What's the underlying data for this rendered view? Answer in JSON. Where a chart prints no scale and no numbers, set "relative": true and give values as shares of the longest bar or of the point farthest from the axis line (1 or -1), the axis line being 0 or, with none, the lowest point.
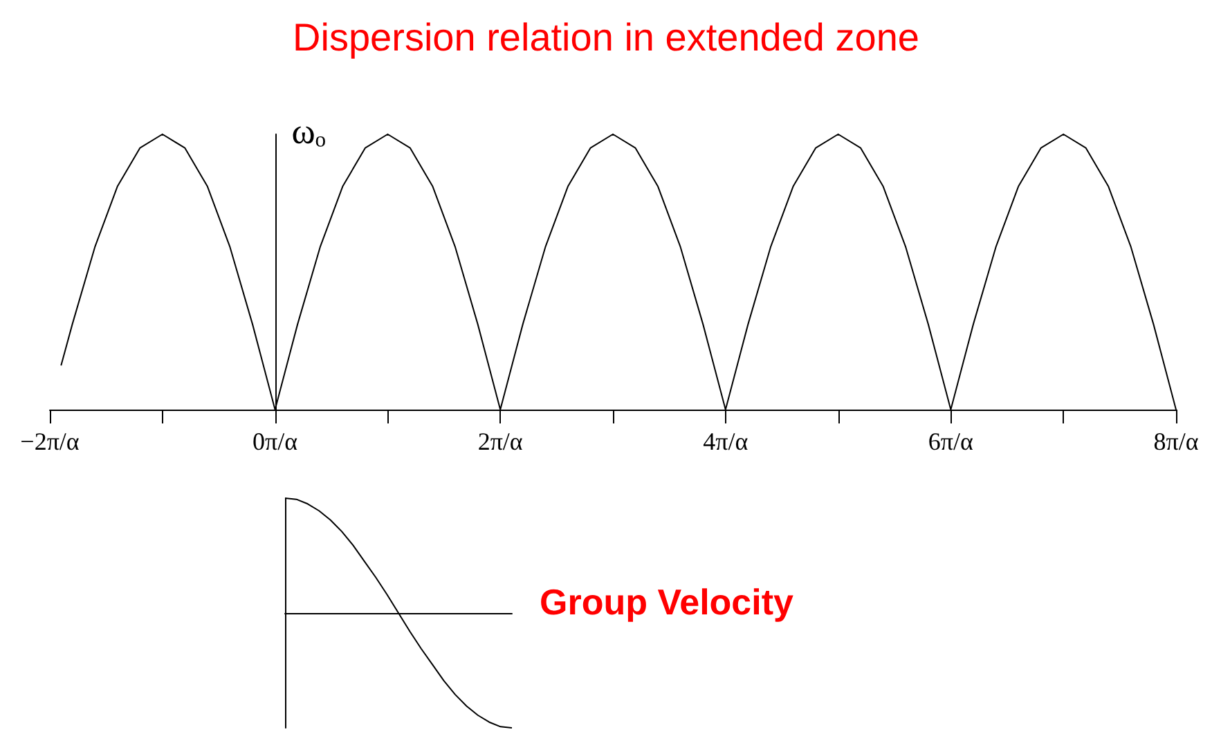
{
  "chart_data": [
    {
      "type": "line",
      "title": "Dispersion relation in extended zone",
      "ylabel": "ωₒ",
      "relative": true,
      "color": "#000000",
      "marker": "none",
      "x": [
        -1.9,
        -1.8,
        -1.6,
        -1.4,
        -1.2,
        -1,
        -0.8,
        -0.6,
        -0.4,
        -0.2,
        0,
        0.2,
        0.4,
        0.6,
        0.8,
        1,
        1.2,
        1.4,
        1.6,
        1.8,
        2,
        2.2,
        2.4,
        2.6,
        2.8,
        3,
        3.2,
        3.4,
        3.6,
        3.8,
        4,
        4.2,
        4.4,
        4.6,
        4.8,
        5,
        5.2,
        5.4,
        5.6,
        5.8,
        6,
        6.2,
        6.4,
        6.6,
        6.8,
        7,
        7.2,
        7.4,
        7.6,
        7.8,
        8
      ],
      "values": [
        0.16,
        0.31,
        0.59,
        0.81,
        0.95,
        1,
        0.95,
        0.81,
        0.59,
        0.31,
        0,
        0.31,
        0.59,
        0.81,
        0.95,
        1,
        0.95,
        0.81,
        0.59,
        0.31,
        0,
        0.31,
        0.59,
        0.81,
        0.95,
        1,
        0.95,
        0.81,
        0.59,
        0.31,
        0,
        0.31,
        0.59,
        0.81,
        0.95,
        1,
        0.95,
        0.81,
        0.59,
        0.31,
        0,
        0.31,
        0.59,
        0.81,
        0.95,
        1,
        0.95,
        0.81,
        0.59,
        0.31,
        0
      ],
      "xlim": [
        -2,
        8
      ],
      "xticks": [
        {
          "value": -2,
          "label": "−2π/α"
        },
        {
          "value": -1,
          "label": null
        },
        {
          "value": 0,
          "label": "0π/α"
        },
        {
          "value": 1,
          "label": null
        },
        {
          "value": 2,
          "label": "2π/α"
        },
        {
          "value": 3,
          "label": null
        },
        {
          "value": 4,
          "label": "4π/α"
        },
        {
          "value": 5,
          "label": null
        },
        {
          "value": 6,
          "label": "6π/α"
        },
        {
          "value": 7,
          "label": null
        },
        {
          "value": 8,
          "label": "8π/α"
        }
      ]
    },
    {
      "type": "line",
      "annotations": [
        "Group Velocity"
      ],
      "relative": true,
      "color": "#000000",
      "marker": "none",
      "categories": [
        null,
        null,
        null,
        null,
        null,
        null,
        null,
        null,
        null,
        null,
        null,
        null,
        null,
        null,
        null,
        null,
        null,
        null,
        null,
        null,
        null
      ],
      "values": [
        1,
        0.99,
        0.95,
        0.89,
        0.81,
        0.71,
        0.59,
        0.45,
        0.31,
        0.16,
        0,
        -0.16,
        -0.31,
        -0.45,
        -0.59,
        -0.71,
        -0.81,
        -0.89,
        -0.95,
        -0.99,
        -1
      ]
    }
  ]
}
